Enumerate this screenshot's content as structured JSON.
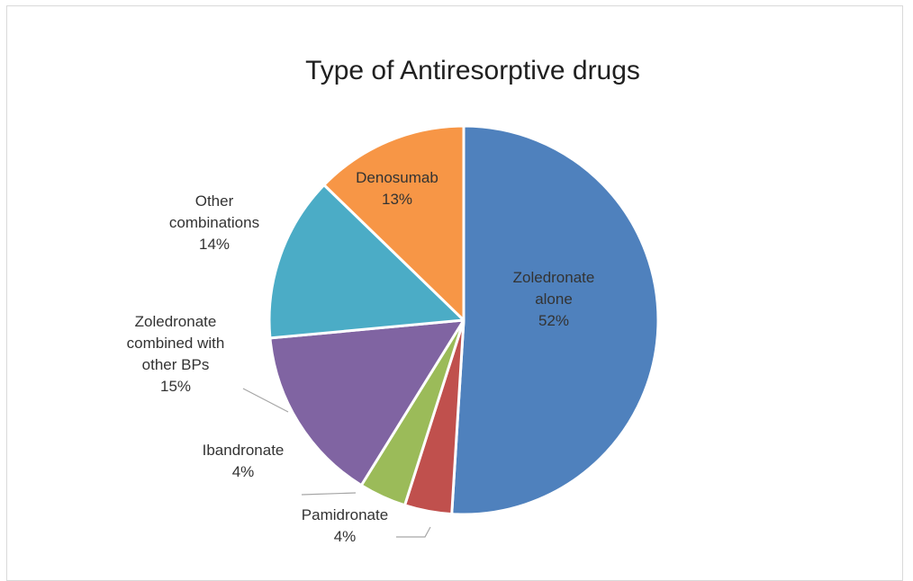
{
  "chart_data": {
    "type": "pie",
    "title": "Type of Antiresorptive drugs",
    "slices": [
      {
        "name": "Zoledronate alone",
        "label_lines": [
          "Zoledronate",
          "alone"
        ],
        "value": 52,
        "value_label": "52%",
        "color": "#4F81BD"
      },
      {
        "name": "Pamidronate",
        "label_lines": [
          "Pamidronate"
        ],
        "value": 4,
        "value_label": "4%",
        "color": "#C0504D"
      },
      {
        "name": "Ibandronate",
        "label_lines": [
          "Ibandronate"
        ],
        "value": 4,
        "value_label": "4%",
        "color": "#9BBB59"
      },
      {
        "name": "Zoledronate combined with other BPs",
        "label_lines": [
          "Zoledronate",
          "combined with",
          "other BPs"
        ],
        "value": 15,
        "value_label": "15%",
        "color": "#8064A2"
      },
      {
        "name": "Other combinations",
        "label_lines": [
          "Other",
          "combinations"
        ],
        "value": 14,
        "value_label": "14%",
        "color": "#4BACC6"
      },
      {
        "name": "Denosumab",
        "label_lines": [
          "Denosumab"
        ],
        "value": 13,
        "value_label": "13%",
        "color": "#F79646"
      }
    ],
    "start_angle": "12 o'clock",
    "direction": "clockwise",
    "legend": "none"
  }
}
